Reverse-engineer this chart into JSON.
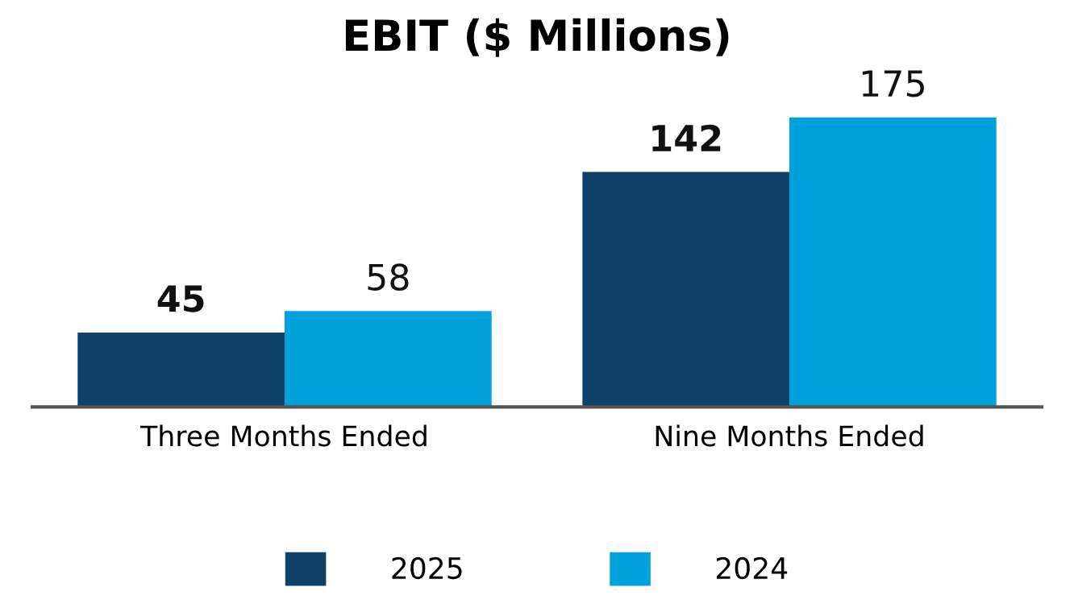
{
  "chart_data": {
    "type": "bar",
    "title": "EBIT ($ Millions)",
    "categories": [
      "Three Months Ended",
      "Nine Months Ended"
    ],
    "series": [
      {
        "name": "2025",
        "color": "#0e416a",
        "values": [
          45,
          142
        ]
      },
      {
        "name": "2024",
        "color": "#00a1dc",
        "values": [
          58,
          175
        ]
      }
    ],
    "data_labels": true,
    "legend": "bottom",
    "grid": false
  }
}
